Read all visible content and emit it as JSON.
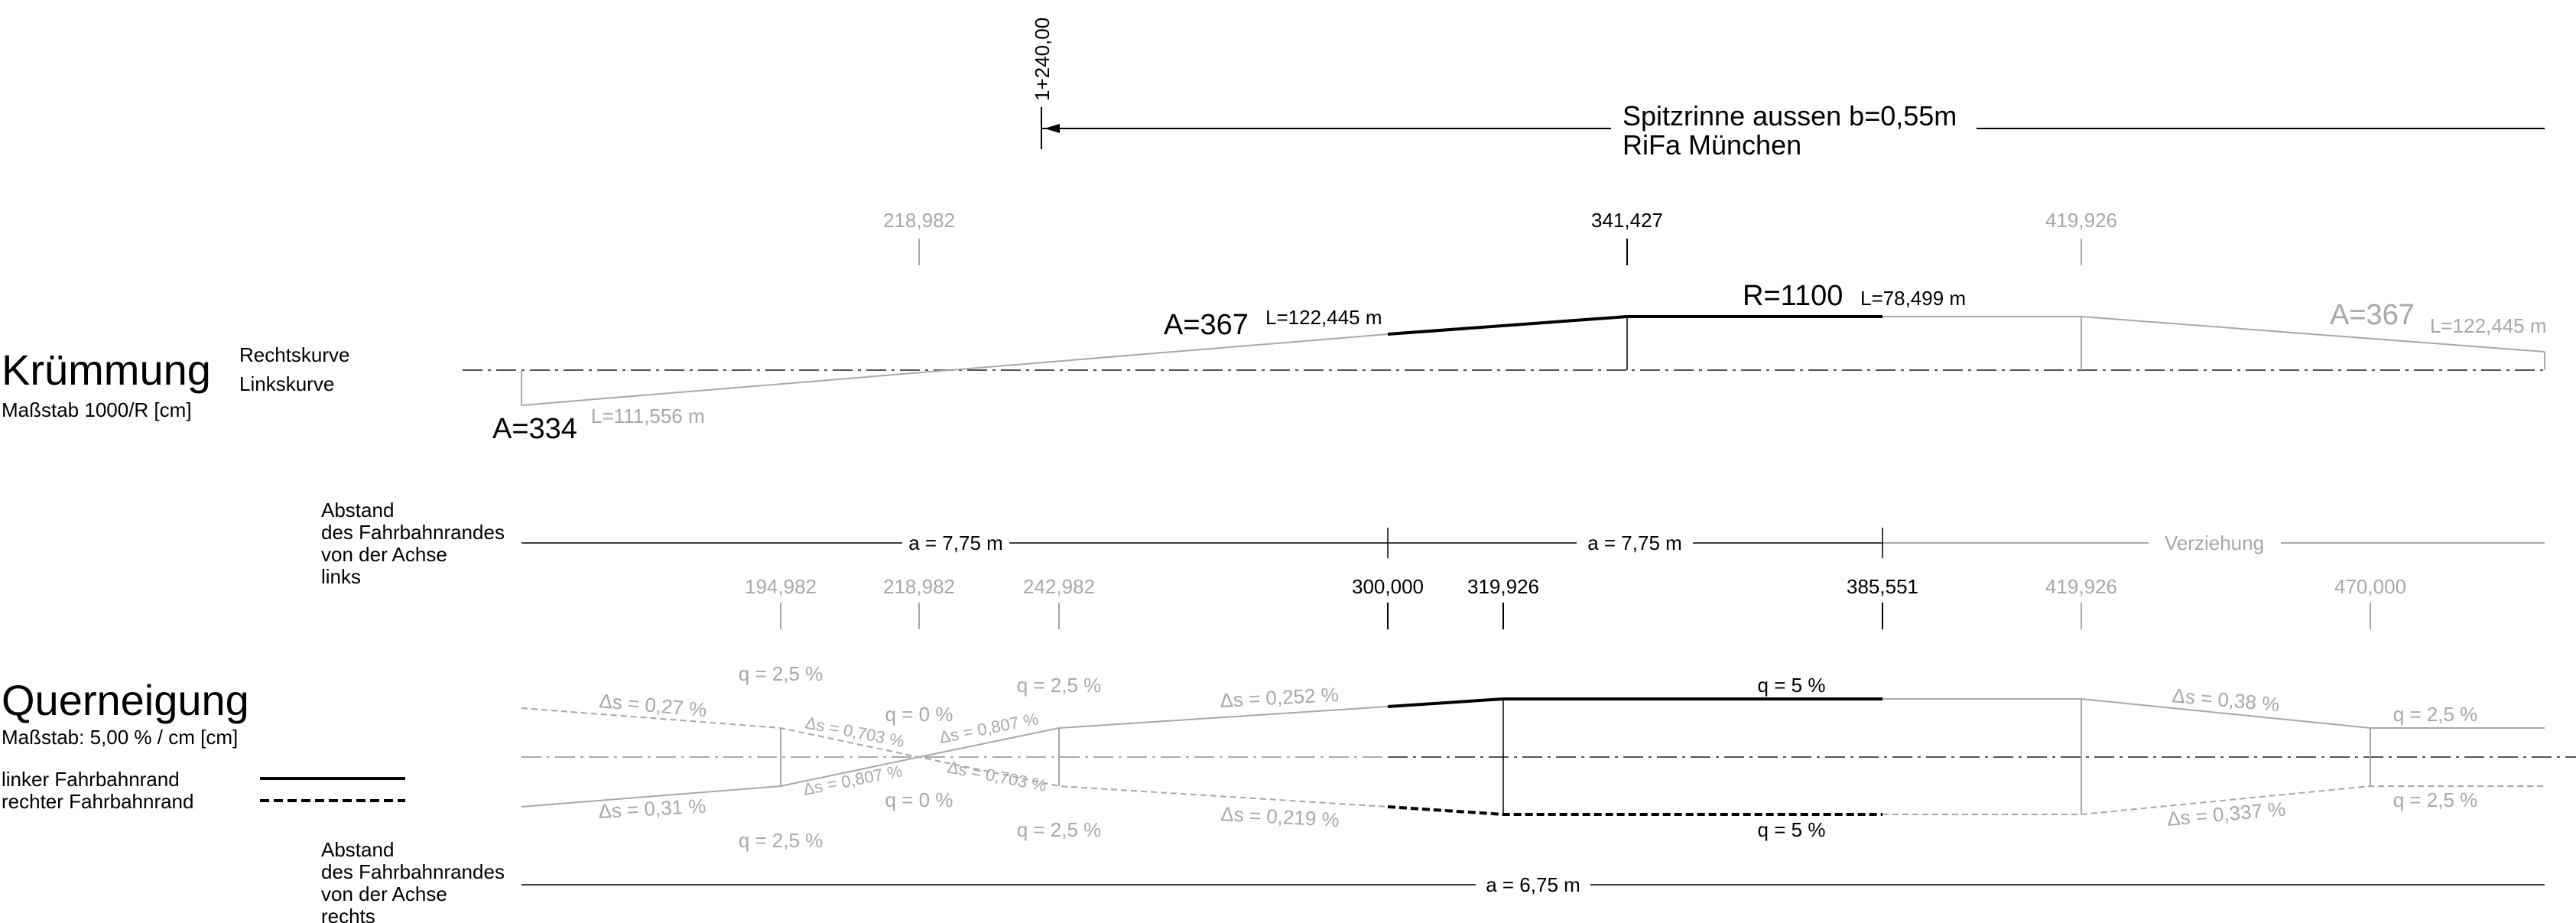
{
  "header": {
    "station": "1+240,00",
    "title_line1": "Spitzrinne aussen b=0,55m",
    "title_line2": "RiFa München"
  },
  "kruemmung": {
    "title": "Krümmung",
    "subtitle": "Maßstab 1000/R [cm]",
    "label_right": "Rechtskurve",
    "label_left": "Linkskurve",
    "stations": [
      {
        "value": "218,982",
        "active": false
      },
      {
        "value": "341,427",
        "active": true
      },
      {
        "value": "419,926",
        "active": false
      }
    ],
    "elements": {
      "a334": "A=334",
      "l334": "L=111,556 m",
      "a367": "A=367",
      "l367": "L=122,445 m",
      "r1100": "R=1100",
      "l1100": "L=78,499 m",
      "a367b": "A=367",
      "l367b": "L=122,445 m"
    }
  },
  "abstand_links": {
    "label": [
      "Abstand",
      "des Fahrbahnrandes",
      "von der Achse",
      "links"
    ],
    "seg1": "a = 7,75 m",
    "seg2": "a = 7,75 m",
    "seg3": "Verziehung"
  },
  "querneigung": {
    "title": "Querneigung",
    "subtitle": "Maßstab: 5,00 % / cm [cm]",
    "legend_left": "linker Fahrbahnrand",
    "legend_right": "rechter Fahrbahnrand",
    "stations": [
      {
        "value": "194,982",
        "active": false
      },
      {
        "value": "218,982",
        "active": false
      },
      {
        "value": "242,982",
        "active": false
      },
      {
        "value": "300,000",
        "active": true
      },
      {
        "value": "319,926",
        "active": true
      },
      {
        "value": "385,551",
        "active": true
      },
      {
        "value": "419,926",
        "active": false
      },
      {
        "value": "470,000",
        "active": false
      }
    ],
    "labels": {
      "q25_top": "q = 2,5 %",
      "ds027": "Δs = 0,27 %",
      "ds0703_top": "Δs = 0,703 %",
      "q0_top": "q = 0 %",
      "ds0807_top": "Δs = 0,807 %",
      "q25_top2": "q = 2,5 %",
      "ds0252": "Δs = 0,252 %",
      "q5_top": "q = 5 %",
      "ds038": "Δs = 0,38 %",
      "q25_right_top": "q = 2,5 %",
      "ds031": "Δs = 0,31 %",
      "ds0807_bot": "Δs = 0,807 %",
      "q0_bot": "q = 0 %",
      "ds0703_bot": "Δs = 0,703 %",
      "q25_bot": "q = 2,5 %",
      "q25_bot2": "q = 2,5 %",
      "ds0219": "Δs = 0,219 %",
      "q5_bot": "q = 5 %",
      "ds0337": "Δs = 0,337 %",
      "q25_right_bot": "q = 2,5 %"
    }
  },
  "abstand_rechts": {
    "label": [
      "Abstand",
      "des Fahrbahnrandes",
      "von der Achse",
      "rechts"
    ],
    "seg1": "a = 6,75 m"
  }
}
